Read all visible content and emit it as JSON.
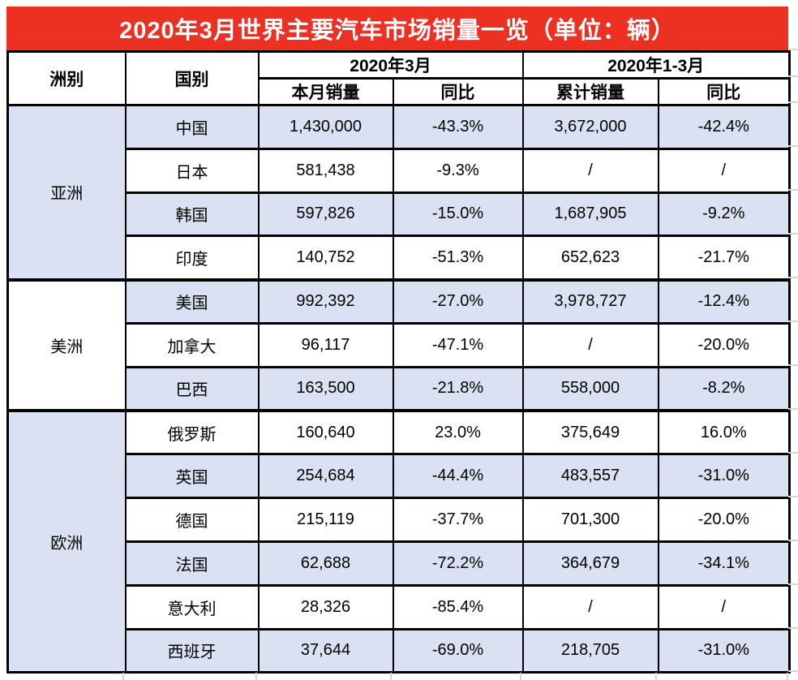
{
  "colors": {
    "title_bg": "#EC3123",
    "title_text": "#FFFFFF",
    "shaded_row_bg": "#D9E1F2",
    "plain_row_bg": "#FFFFFF",
    "table_border": "#000000",
    "spreadsheet_gridline": "#D4D4D4"
  },
  "chart_data": {
    "type": "table",
    "title": "2020年3月世界主要汽车市场销量一览（单位：辆）",
    "header": {
      "continent": "洲别",
      "country": "国别",
      "group_march": "2020年3月",
      "group_jan_mar": "2020年1-3月",
      "monthly_sales": "本月销量",
      "monthly_yoy": "同比",
      "cumulative_sales": "累计销量",
      "cumulative_yoy": "同比"
    },
    "sections": [
      {
        "continent": "亚洲",
        "rows": [
          [
            "中国",
            "1,430,000",
            "-43.3%",
            "3,672,000",
            "-42.4%"
          ],
          [
            "日本",
            "581,438",
            "-9.3%",
            "/",
            "/"
          ],
          [
            "韩国",
            "597,826",
            "-15.0%",
            "1,687,905",
            "-9.2%"
          ],
          [
            "印度",
            "140,752",
            "-51.3%",
            "652,623",
            "-21.7%"
          ]
        ]
      },
      {
        "continent": "美洲",
        "rows": [
          [
            "美国",
            "992,392",
            "-27.0%",
            "3,978,727",
            "-12.4%"
          ],
          [
            "加拿大",
            "96,117",
            "-47.1%",
            "/",
            "-20.0%"
          ],
          [
            "巴西",
            "163,500",
            "-21.8%",
            "558,000",
            "-8.2%"
          ]
        ]
      },
      {
        "continent": "欧洲",
        "rows": [
          [
            "俄罗斯",
            "160,640",
            "23.0%",
            "375,649",
            "16.0%"
          ],
          [
            "英国",
            "254,684",
            "-44.4%",
            "483,557",
            "-31.0%"
          ],
          [
            "德国",
            "215,119",
            "-37.7%",
            "701,300",
            "-20.0%"
          ],
          [
            "法国",
            "62,688",
            "-72.2%",
            "364,679",
            "-34.1%"
          ],
          [
            "意大利",
            "28,326",
            "-85.4%",
            "/",
            "/"
          ],
          [
            "西班牙",
            "37,644",
            "-69.0%",
            "218,705",
            "-31.0%"
          ]
        ]
      }
    ]
  }
}
